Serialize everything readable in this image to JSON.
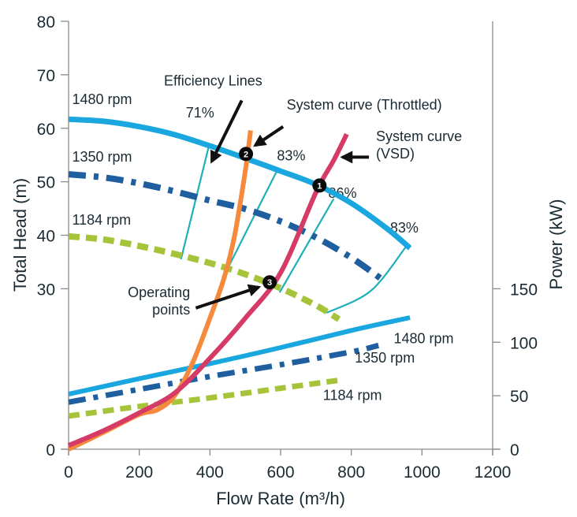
{
  "chart_data": {
    "type": "line",
    "title": "",
    "xlabel": "Flow Rate (m³/h)",
    "ylabel": "Total Head (m)",
    "y2label": "Power (kW)",
    "xlim": [
      0,
      1200
    ],
    "ylim": [
      0,
      80
    ],
    "y2lim": [
      0,
      150
    ],
    "xticks": [
      0,
      200,
      400,
      600,
      800,
      1000,
      1200
    ],
    "yticks": [
      0,
      30,
      40,
      50,
      60,
      70,
      80
    ],
    "y2ticks": [
      0,
      50,
      100,
      150
    ],
    "grid": false,
    "colors": {
      "rpm_1480": "#1aa7e0",
      "rpm_1350": "#1f5f9f",
      "rpm_1184": "#a6c43a",
      "efficiency": "#1eb0b8",
      "system_throttled": "#f58a3c",
      "system_vsd": "#d63a66",
      "annotation": "#111111",
      "axis": "#8a8a8a"
    },
    "head_curves": [
      {
        "name": "1480 rpm",
        "style": "solid",
        "color_key": "rpm_1480",
        "x": [
          0,
          100,
          200,
          300,
          400,
          500,
          600,
          700,
          800,
          900,
          966
        ],
        "y": [
          61.7,
          61.3,
          60.3,
          58.8,
          56.7,
          54.4,
          52.0,
          49.5,
          46.0,
          41.3,
          37.6
        ]
      },
      {
        "name": "1350 rpm",
        "style": "dashdot",
        "color_key": "rpm_1350",
        "x": [
          0,
          100,
          200,
          300,
          400,
          500,
          600,
          700,
          800,
          888
        ],
        "y": [
          51.4,
          50.8,
          49.7,
          48.2,
          46.5,
          44.9,
          42.6,
          39.6,
          35.8,
          31.7
        ]
      },
      {
        "name": "1184 rpm",
        "style": "dashed",
        "color_key": "rpm_1184",
        "x": [
          0,
          100,
          200,
          300,
          400,
          500,
          600,
          700,
          765
        ],
        "y": [
          39.8,
          39.2,
          38.0,
          36.5,
          34.8,
          32.7,
          30.1,
          26.9,
          24.3
        ]
      }
    ],
    "power_curves": [
      {
        "name": "1480 rpm",
        "style": "solid",
        "color_key": "rpm_1480",
        "x": [
          0,
          200,
          400,
          600,
          800,
          966
        ],
        "y": [
          51.5,
          66,
          80,
          95,
          111,
          123
        ]
      },
      {
        "name": "1350 rpm",
        "style": "dashdot",
        "color_key": "rpm_1350",
        "x": [
          0,
          200,
          400,
          600,
          800,
          877
        ],
        "y": [
          44,
          56,
          68,
          79,
          91,
          97
        ]
      },
      {
        "name": "1184 rpm",
        "style": "dashed",
        "color_key": "rpm_1184",
        "x": [
          0,
          200,
          400,
          600,
          776
        ],
        "y": [
          31,
          40,
          48,
          57,
          65
        ]
      }
    ],
    "system_curves": [
      {
        "name": "System curve (Throttled)",
        "color_key": "system_throttled",
        "x": [
          0,
          100,
          200,
          252,
          300,
          350,
          400,
          440,
          470,
          500,
          515
        ],
        "y": [
          0,
          3.2,
          6.5,
          7.4,
          10,
          16,
          24.5,
          32,
          40,
          52,
          59.6
        ]
      },
      {
        "name": "System curve (VSD)",
        "color_key": "system_vsd",
        "x": [
          0,
          100,
          200,
          300,
          400,
          500,
          600,
          700,
          750,
          787
        ],
        "y": [
          0.7,
          3.5,
          6.8,
          10.5,
          17,
          24.5,
          33,
          48,
          54,
          58.9
        ]
      }
    ],
    "efficiency_lines": [
      {
        "label": "71%",
        "x": [
          318,
          397
        ],
        "y": [
          35.5,
          56.7
        ]
      },
      {
        "label": "83%",
        "x": [
          448,
          593
        ],
        "y": [
          33.5,
          52.5
        ]
      },
      {
        "label": "86%",
        "x": [
          597,
          750
        ],
        "y": [
          29.3,
          46.8
        ]
      },
      {
        "label": "83%",
        "x": [
          730,
          855,
          955
        ],
        "y": [
          25.5,
          29.6,
          37.9
        ]
      }
    ],
    "efficiency_labels": [
      {
        "text": "71%",
        "x": 372,
        "y": 62
      },
      {
        "text": "83%",
        "x": 630,
        "y": 54
      },
      {
        "text": "86%",
        "x": 775,
        "y": 47
      },
      {
        "text": "83%",
        "x": 950,
        "y": 40.5
      }
    ],
    "operating_points": [
      {
        "label": "1",
        "x": 710,
        "y": 49.3
      },
      {
        "label": "2",
        "x": 502,
        "y": 55.2
      },
      {
        "label": "3",
        "x": 569,
        "y": 31.2
      }
    ],
    "curve_labels": [
      {
        "text": "1480 rpm",
        "axis": "head",
        "x": 10,
        "y": 64.5
      },
      {
        "text": "1350 rpm",
        "axis": "head",
        "x": 10,
        "y": 53.8
      },
      {
        "text": "1184 rpm",
        "axis": "head",
        "x": 10,
        "y": 42
      },
      {
        "text": "1480 rpm",
        "axis": "power",
        "x": 920,
        "y": 99
      },
      {
        "text": "1350 rpm",
        "axis": "power",
        "x": 810,
        "y": 81
      },
      {
        "text": "1184 rpm",
        "axis": "power",
        "x": 720,
        "y": 46
      }
    ],
    "annotations": [
      {
        "lines": [
          "Efficiency Lines"
        ],
        "text_x": 270,
        "text_y": 68,
        "arrow_from": [
          490,
          65.2
        ],
        "arrow_to": [
          405,
          53.8
        ]
      },
      {
        "lines": [
          "System curve (Throttled)"
        ],
        "text_x": 617,
        "text_y": 63.5,
        "arrow_from": [
          607,
          60.3
        ],
        "arrow_to": [
          528,
          56.8
        ]
      },
      {
        "lines": [
          "System curve",
          "(VSD)"
        ],
        "text_x": 870,
        "text_y": 57.6,
        "arrow_from": [
          850,
          54.6
        ],
        "arrow_to": [
          775,
          54.6
        ]
      },
      {
        "lines": [
          "Operating",
          "points"
        ],
        "text_x": 344,
        "text_y": 28.4,
        "align": "end",
        "arrow_from": [
          360,
          26.4
        ],
        "arrow_to": [
          538,
          30.3
        ]
      }
    ]
  }
}
